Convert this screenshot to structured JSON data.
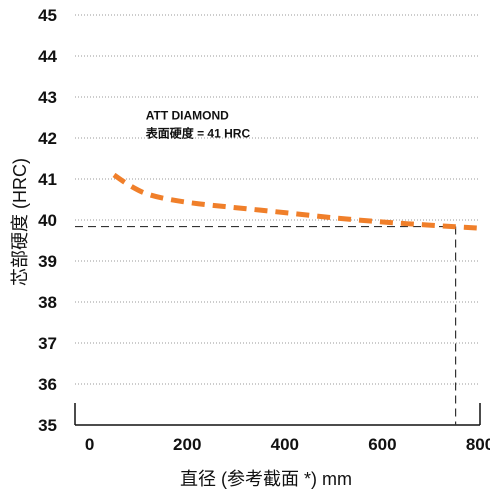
{
  "chart_data": {
    "type": "line",
    "title": "",
    "xlabel": "直径 (参考截面 *) mm",
    "ylabel": "芯部硬度 (HRC)",
    "xlim": [
      -30,
      800
    ],
    "ylim": [
      35,
      45
    ],
    "x_ticks": [
      "0",
      "200",
      "400",
      "600",
      "800"
    ],
    "y_ticks": [
      "35",
      "36",
      "37",
      "38",
      "39",
      "40",
      "41",
      "42",
      "43",
      "44",
      "45"
    ],
    "grid": "horizontal-dotted",
    "series": [
      {
        "name": "",
        "color": "#f07f2a",
        "style": "dashed",
        "points": [
          {
            "x": 50,
            "y": 41.1
          },
          {
            "x": 80,
            "y": 40.85
          },
          {
            "x": 120,
            "y": 40.6
          },
          {
            "x": 200,
            "y": 40.42
          },
          {
            "x": 300,
            "y": 40.3
          },
          {
            "x": 400,
            "y": 40.18
          },
          {
            "x": 500,
            "y": 40.05
          },
          {
            "x": 600,
            "y": 39.95
          },
          {
            "x": 700,
            "y": 39.87
          },
          {
            "x": 800,
            "y": 39.8
          }
        ]
      }
    ],
    "reference_point": {
      "x": 750,
      "y": 39.84
    },
    "annotation": {
      "line1": "ATT DIAMOND",
      "line2": "表面硬度 = 41 HRC",
      "x": 115,
      "y": 42.45
    }
  }
}
